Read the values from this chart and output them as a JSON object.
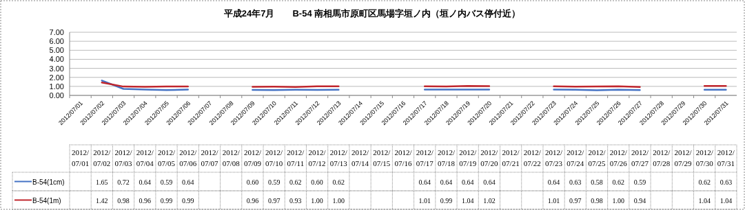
{
  "chart_data": {
    "type": "line",
    "title": "平成24年7月　　B-54 南相馬市原町区馬場字垣ノ内（垣ノ内バス停付近）",
    "categories": [
      "2012/07/01",
      "2012/07/02",
      "2012/07/03",
      "2012/07/04",
      "2012/07/05",
      "2012/07/06",
      "2012/07/07",
      "2012/07/08",
      "2012/07/09",
      "2012/07/10",
      "2012/07/11",
      "2012/07/12",
      "2012/07/13",
      "2012/07/14",
      "2012/07/15",
      "2012/07/16",
      "2012/07/17",
      "2012/07/18",
      "2012/07/19",
      "2012/07/20",
      "2012/07/21",
      "2012/07/22",
      "2012/07/23",
      "2012/07/24",
      "2012/07/25",
      "2012/07/26",
      "2012/07/27",
      "2012/07/28",
      "2012/07/29",
      "2012/07/30",
      "2012/07/31"
    ],
    "series": [
      {
        "name": "B-54(1cm)",
        "color": "#4472c4",
        "values": [
          null,
          1.65,
          0.72,
          0.64,
          0.59,
          0.64,
          null,
          null,
          0.6,
          0.59,
          0.62,
          0.6,
          0.62,
          null,
          null,
          null,
          0.64,
          0.64,
          0.64,
          0.64,
          null,
          null,
          0.64,
          0.63,
          0.58,
          0.62,
          0.59,
          null,
          null,
          0.62,
          0.63
        ],
        "value_labels": [
          null,
          "1.65",
          "0.72",
          "0.64",
          "0.59",
          "0.64",
          null,
          null,
          "0.60",
          "0.59",
          "0.62",
          "0.60",
          "0.62",
          null,
          null,
          null,
          "0.64",
          "0.64",
          "0.64",
          "0.64",
          null,
          null,
          "0.64",
          "0.63",
          "0.58",
          "0.62",
          "0.59",
          null,
          null,
          "0.62",
          "0.63"
        ]
      },
      {
        "name": "B-54(1m)",
        "color": "#c0262d",
        "values": [
          null,
          1.42,
          0.98,
          0.96,
          0.99,
          0.99,
          null,
          null,
          0.96,
          0.97,
          0.93,
          1.0,
          1.0,
          null,
          null,
          null,
          1.01,
          0.99,
          1.04,
          1.02,
          null,
          null,
          1.01,
          0.97,
          0.98,
          1.0,
          0.94,
          null,
          null,
          1.04,
          1.04
        ],
        "value_labels": [
          null,
          "1.42",
          "0.98",
          "0.96",
          "0.99",
          "0.99",
          null,
          null,
          "0.96",
          "0.97",
          "0.93",
          "1.00",
          "1.00",
          null,
          null,
          null,
          "1.01",
          "0.99",
          "1.04",
          "1.02",
          null,
          null,
          "1.01",
          "0.97",
          "0.98",
          "1.00",
          "0.94",
          null,
          null,
          "1.04",
          "1.04"
        ]
      }
    ],
    "ylim": [
      0,
      7
    ],
    "yticks": [
      {
        "value": 0,
        "label": "0.00"
      },
      {
        "value": 1,
        "label": "1.00"
      },
      {
        "value": 2,
        "label": "2.00"
      },
      {
        "value": 3,
        "label": "3.00"
      },
      {
        "value": 4,
        "label": "4.00"
      },
      {
        "value": 5,
        "label": "5.00"
      },
      {
        "value": 6,
        "label": "6.00"
      },
      {
        "value": 7,
        "label": "7.00"
      }
    ],
    "grid": "y",
    "legend": "bottom"
  }
}
